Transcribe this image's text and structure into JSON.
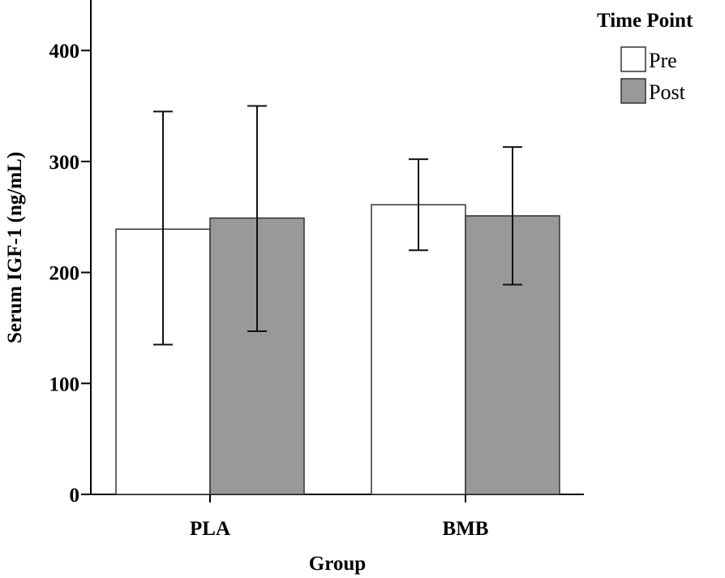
{
  "chart_data": {
    "type": "bar",
    "title": "",
    "xlabel": "Group",
    "ylabel": "Serum IGF-1 (ng/mL)",
    "categories": [
      "PLA",
      "BMB"
    ],
    "ylim": [
      0,
      445
    ],
    "yticks": [
      0,
      100,
      200,
      300,
      400
    ],
    "grid": false,
    "legend": {
      "title": "Time Point",
      "placement": "top-right"
    },
    "series": [
      {
        "name": "Pre",
        "color": "#ffffff",
        "values": [
          239,
          261
        ],
        "err_low": [
          135,
          220
        ],
        "err_high": [
          345,
          302
        ]
      },
      {
        "name": "Post",
        "color": "#999999",
        "values": [
          249,
          251
        ],
        "err_low": [
          147,
          189
        ],
        "err_high": [
          350,
          313
        ]
      }
    ]
  }
}
